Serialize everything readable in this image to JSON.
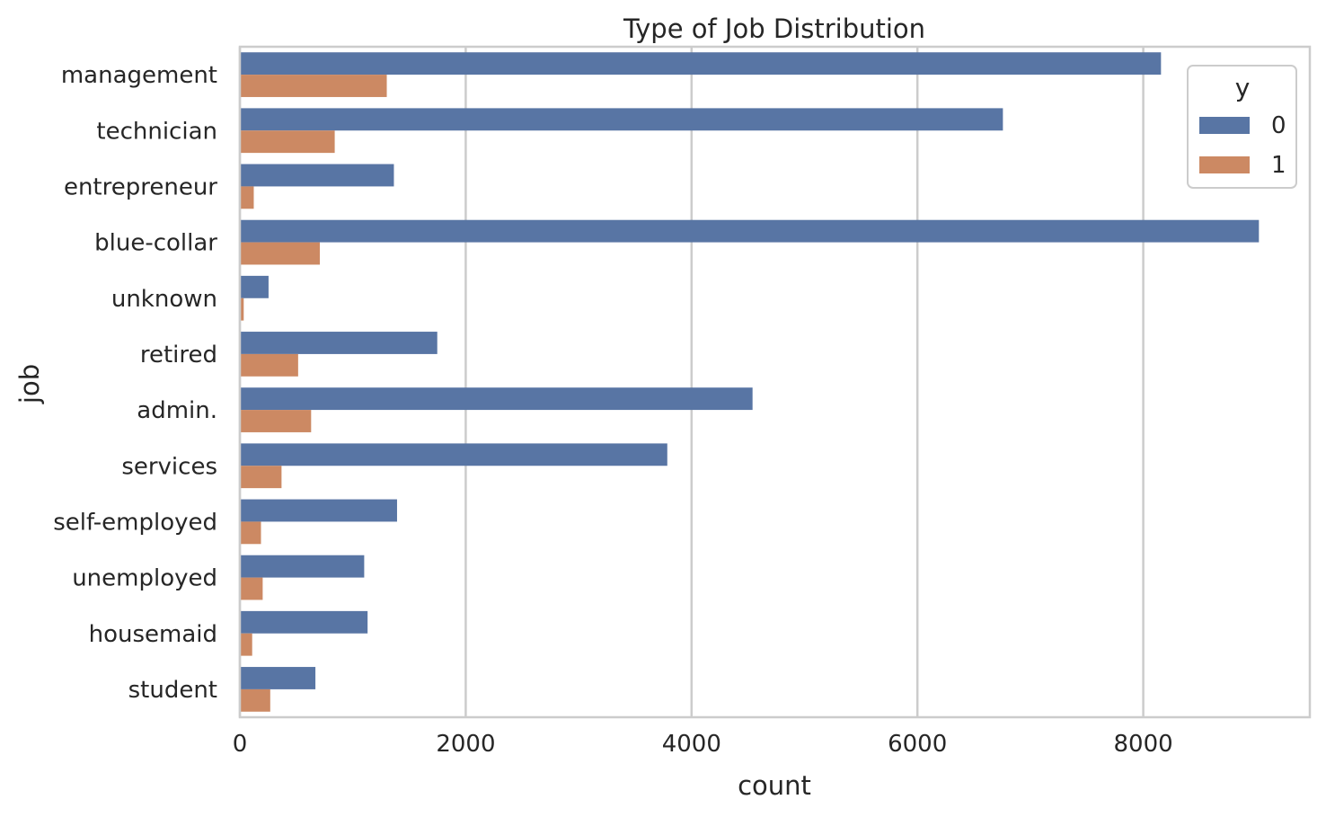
{
  "chart_data": {
    "type": "bar",
    "orientation": "horizontal",
    "title": "Type of Job Distribution",
    "xlabel": "count",
    "ylabel": "job",
    "categories": [
      "management",
      "technician",
      "entrepreneur",
      "blue-collar",
      "unknown",
      "retired",
      "admin.",
      "services",
      "self-employed",
      "unemployed",
      "housemaid",
      "student"
    ],
    "series": [
      {
        "name": "0",
        "color": "#5875a4",
        "values": [
          8157,
          6757,
          1364,
          9024,
          254,
          1748,
          4540,
          3785,
          1392,
          1101,
          1131,
          669
        ]
      },
      {
        "name": "1",
        "color": "#cc8963",
        "values": [
          1301,
          840,
          123,
          708,
          34,
          516,
          631,
          369,
          187,
          202,
          109,
          269
        ]
      }
    ],
    "xlim": [
      0,
      9475
    ],
    "xticks": [
      0,
      2000,
      4000,
      6000,
      8000
    ],
    "xtick_labels": [
      "0",
      "2000",
      "4000",
      "6000",
      "8000"
    ],
    "grid": "vertical",
    "legend": {
      "title": "y",
      "placement": "top-right",
      "entries": [
        "0",
        "1"
      ]
    }
  }
}
